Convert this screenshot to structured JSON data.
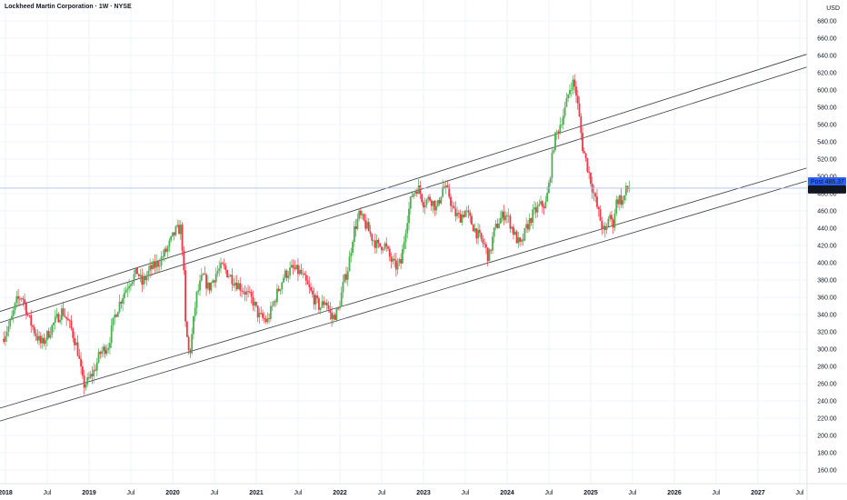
{
  "header": {
    "title": "Lockheed Martin Corporation · 1W · NYSE",
    "currency": "USD"
  },
  "price_labels": {
    "post": {
      "tag": "Post",
      "value": "486.37",
      "color": "#2962ff"
    },
    "last": {
      "tag": "LMT",
      "value": "486.45",
      "color": "#131722"
    }
  },
  "colors": {
    "up": "#4caf50",
    "down": "#f23645",
    "channel": "#3a3a3a",
    "grid": "#f0f3fa",
    "post_line": "#a8c3f0"
  },
  "chart_data": {
    "type": "candlestick",
    "title": "Lockheed Martin Corporation · 1W · NYSE",
    "ylabel": "USD",
    "ylim": [
      140,
      700
    ],
    "y_ticks": [
      160,
      180,
      200,
      220,
      240,
      260,
      280,
      300,
      320,
      340,
      360,
      380,
      400,
      420,
      440,
      460,
      480,
      500,
      520,
      540,
      560,
      580,
      600,
      620,
      640,
      660,
      680
    ],
    "xlim": [
      2017.98,
      2027.7
    ],
    "x_ticks": [
      {
        "label": "2018",
        "t": 2018.0,
        "bold": true
      },
      {
        "label": "Jul",
        "t": 2018.5,
        "bold": false
      },
      {
        "label": "2019",
        "t": 2019.0,
        "bold": true
      },
      {
        "label": "Jul",
        "t": 2019.5,
        "bold": false
      },
      {
        "label": "2020",
        "t": 2020.0,
        "bold": true
      },
      {
        "label": "Jul",
        "t": 2020.5,
        "bold": false
      },
      {
        "label": "2021",
        "t": 2021.0,
        "bold": true
      },
      {
        "label": "Jul",
        "t": 2021.5,
        "bold": false
      },
      {
        "label": "2022",
        "t": 2022.0,
        "bold": true
      },
      {
        "label": "Jul",
        "t": 2022.5,
        "bold": false
      },
      {
        "label": "2023",
        "t": 2023.0,
        "bold": true
      },
      {
        "label": "Jul",
        "t": 2023.5,
        "bold": false
      },
      {
        "label": "2024",
        "t": 2024.0,
        "bold": true
      },
      {
        "label": "Jul",
        "t": 2024.5,
        "bold": false
      },
      {
        "label": "2025",
        "t": 2025.0,
        "bold": true
      },
      {
        "label": "Jul",
        "t": 2025.5,
        "bold": false
      },
      {
        "label": "2026",
        "t": 2026.0,
        "bold": true
      },
      {
        "label": "Jul",
        "t": 2026.5,
        "bold": false
      },
      {
        "label": "2027",
        "t": 2027.0,
        "bold": true
      },
      {
        "label": "Jul",
        "t": 2027.5,
        "bold": false
      }
    ],
    "price_path": [
      [
        2017.98,
        312
      ],
      [
        2018.08,
        330
      ],
      [
        2018.15,
        355
      ],
      [
        2018.22,
        362
      ],
      [
        2018.3,
        335
      ],
      [
        2018.38,
        318
      ],
      [
        2018.45,
        305
      ],
      [
        2018.52,
        316
      ],
      [
        2018.6,
        330
      ],
      [
        2018.7,
        345
      ],
      [
        2018.8,
        325
      ],
      [
        2018.88,
        300
      ],
      [
        2018.95,
        258
      ],
      [
        2019.0,
        262
      ],
      [
        2019.08,
        275
      ],
      [
        2019.15,
        295
      ],
      [
        2019.25,
        305
      ],
      [
        2019.33,
        340
      ],
      [
        2019.42,
        362
      ],
      [
        2019.5,
        378
      ],
      [
        2019.6,
        390
      ],
      [
        2019.65,
        375
      ],
      [
        2019.75,
        392
      ],
      [
        2019.85,
        400
      ],
      [
        2019.95,
        415
      ],
      [
        2020.05,
        436
      ],
      [
        2020.12,
        440
      ],
      [
        2020.15,
        395
      ],
      [
        2020.17,
        330
      ],
      [
        2020.22,
        290
      ],
      [
        2020.3,
        360
      ],
      [
        2020.38,
        385
      ],
      [
        2020.45,
        370
      ],
      [
        2020.55,
        390
      ],
      [
        2020.62,
        395
      ],
      [
        2020.7,
        385
      ],
      [
        2020.8,
        375
      ],
      [
        2020.9,
        365
      ],
      [
        2020.98,
        355
      ],
      [
        2021.05,
        338
      ],
      [
        2021.15,
        332
      ],
      [
        2021.25,
        360
      ],
      [
        2021.35,
        385
      ],
      [
        2021.45,
        393
      ],
      [
        2021.55,
        388
      ],
      [
        2021.62,
        375
      ],
      [
        2021.7,
        360
      ],
      [
        2021.78,
        348
      ],
      [
        2021.85,
        357
      ],
      [
        2021.92,
        335
      ],
      [
        2022.0,
        345
      ],
      [
        2022.06,
        375
      ],
      [
        2022.12,
        395
      ],
      [
        2022.18,
        435
      ],
      [
        2022.25,
        455
      ],
      [
        2022.32,
        445
      ],
      [
        2022.4,
        430
      ],
      [
        2022.48,
        418
      ],
      [
        2022.55,
        422
      ],
      [
        2022.62,
        405
      ],
      [
        2022.68,
        395
      ],
      [
        2022.75,
        400
      ],
      [
        2022.82,
        450
      ],
      [
        2022.88,
        478
      ],
      [
        2022.95,
        488
      ],
      [
        2023.02,
        470
      ],
      [
        2023.1,
        475
      ],
      [
        2023.18,
        462
      ],
      [
        2023.25,
        488
      ],
      [
        2023.32,
        480
      ],
      [
        2023.38,
        458
      ],
      [
        2023.45,
        452
      ],
      [
        2023.52,
        460
      ],
      [
        2023.6,
        445
      ],
      [
        2023.68,
        430
      ],
      [
        2023.75,
        420
      ],
      [
        2023.8,
        405
      ],
      [
        2023.86,
        435
      ],
      [
        2023.93,
        450
      ],
      [
        2024.0,
        458
      ],
      [
        2024.06,
        445
      ],
      [
        2024.12,
        430
      ],
      [
        2024.18,
        418
      ],
      [
        2024.25,
        440
      ],
      [
        2024.32,
        455
      ],
      [
        2024.4,
        465
      ],
      [
        2024.48,
        468
      ],
      [
        2024.52,
        490
      ],
      [
        2024.58,
        540
      ],
      [
        2024.65,
        560
      ],
      [
        2024.72,
        580
      ],
      [
        2024.76,
        600
      ],
      [
        2024.8,
        610
      ],
      [
        2024.84,
        600
      ],
      [
        2024.88,
        570
      ],
      [
        2024.92,
        535
      ],
      [
        2024.97,
        515
      ],
      [
        2025.02,
        495
      ],
      [
        2025.08,
        470
      ],
      [
        2025.12,
        455
      ],
      [
        2025.16,
        440
      ],
      [
        2025.2,
        432
      ],
      [
        2025.24,
        460
      ],
      [
        2025.28,
        440
      ],
      [
        2025.32,
        470
      ],
      [
        2025.36,
        475
      ],
      [
        2025.4,
        470
      ],
      [
        2025.44,
        483
      ],
      [
        2025.47,
        486.45
      ]
    ],
    "channel_lines": [
      {
        "t1": 2017.98,
        "p1": 345,
        "t2": 2027.7,
        "p2": 645
      },
      {
        "t1": 2017.98,
        "p1": 332,
        "t2": 2027.7,
        "p2": 630
      },
      {
        "t1": 2017.98,
        "p1": 233,
        "t2": 2027.7,
        "p2": 513
      },
      {
        "t1": 2017.98,
        "p1": 218,
        "t2": 2027.7,
        "p2": 498
      }
    ],
    "post_price": 486.37,
    "last_price": 486.45
  }
}
